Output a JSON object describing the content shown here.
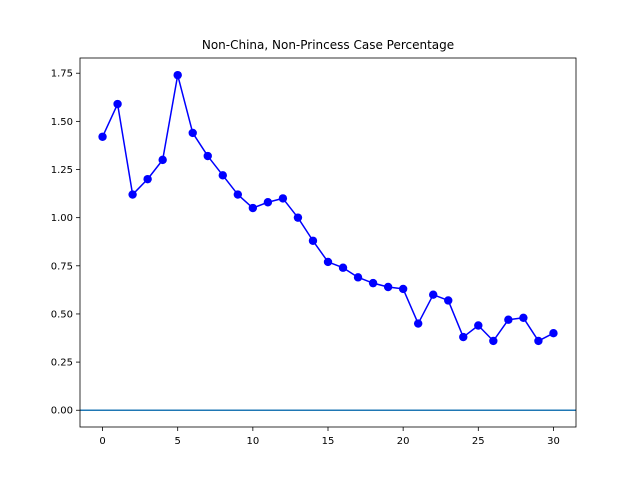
{
  "chart_data": {
    "type": "line",
    "title": "Non-China, Non-Princess Case Percentage",
    "xlabel": "",
    "ylabel": "",
    "xlim": [
      -1.5,
      31.5
    ],
    "ylim": [
      -0.087,
      1.829
    ],
    "xticks": [
      0,
      5,
      10,
      15,
      20,
      25,
      30
    ],
    "xtick_labels": [
      "0",
      "5",
      "10",
      "15",
      "20",
      "25",
      "30"
    ],
    "yticks": [
      0.0,
      0.25,
      0.5,
      0.75,
      1.0,
      1.25,
      1.5,
      1.75
    ],
    "ytick_labels": [
      "0.00",
      "0.25",
      "0.50",
      "0.75",
      "1.00",
      "1.25",
      "1.50",
      "1.75"
    ],
    "grid": false,
    "hline": {
      "y": 0.0,
      "color": "#1f77b4"
    },
    "series": [
      {
        "color": "#0000ff",
        "marker": "circle",
        "x": [
          0,
          1,
          2,
          3,
          4,
          5,
          6,
          7,
          8,
          9,
          10,
          11,
          12,
          13,
          14,
          15,
          16,
          17,
          18,
          19,
          20,
          21,
          22,
          23,
          24,
          25,
          26,
          27,
          28,
          29,
          30
        ],
        "y": [
          1.42,
          1.59,
          1.12,
          1.2,
          1.3,
          1.74,
          1.44,
          1.32,
          1.22,
          1.12,
          1.05,
          1.08,
          1.1,
          1.0,
          0.88,
          0.77,
          0.74,
          0.69,
          0.66,
          0.64,
          0.63,
          0.45,
          0.6,
          0.57,
          0.38,
          0.44,
          0.36,
          0.47,
          0.48,
          0.36,
          0.4
        ]
      }
    ]
  }
}
